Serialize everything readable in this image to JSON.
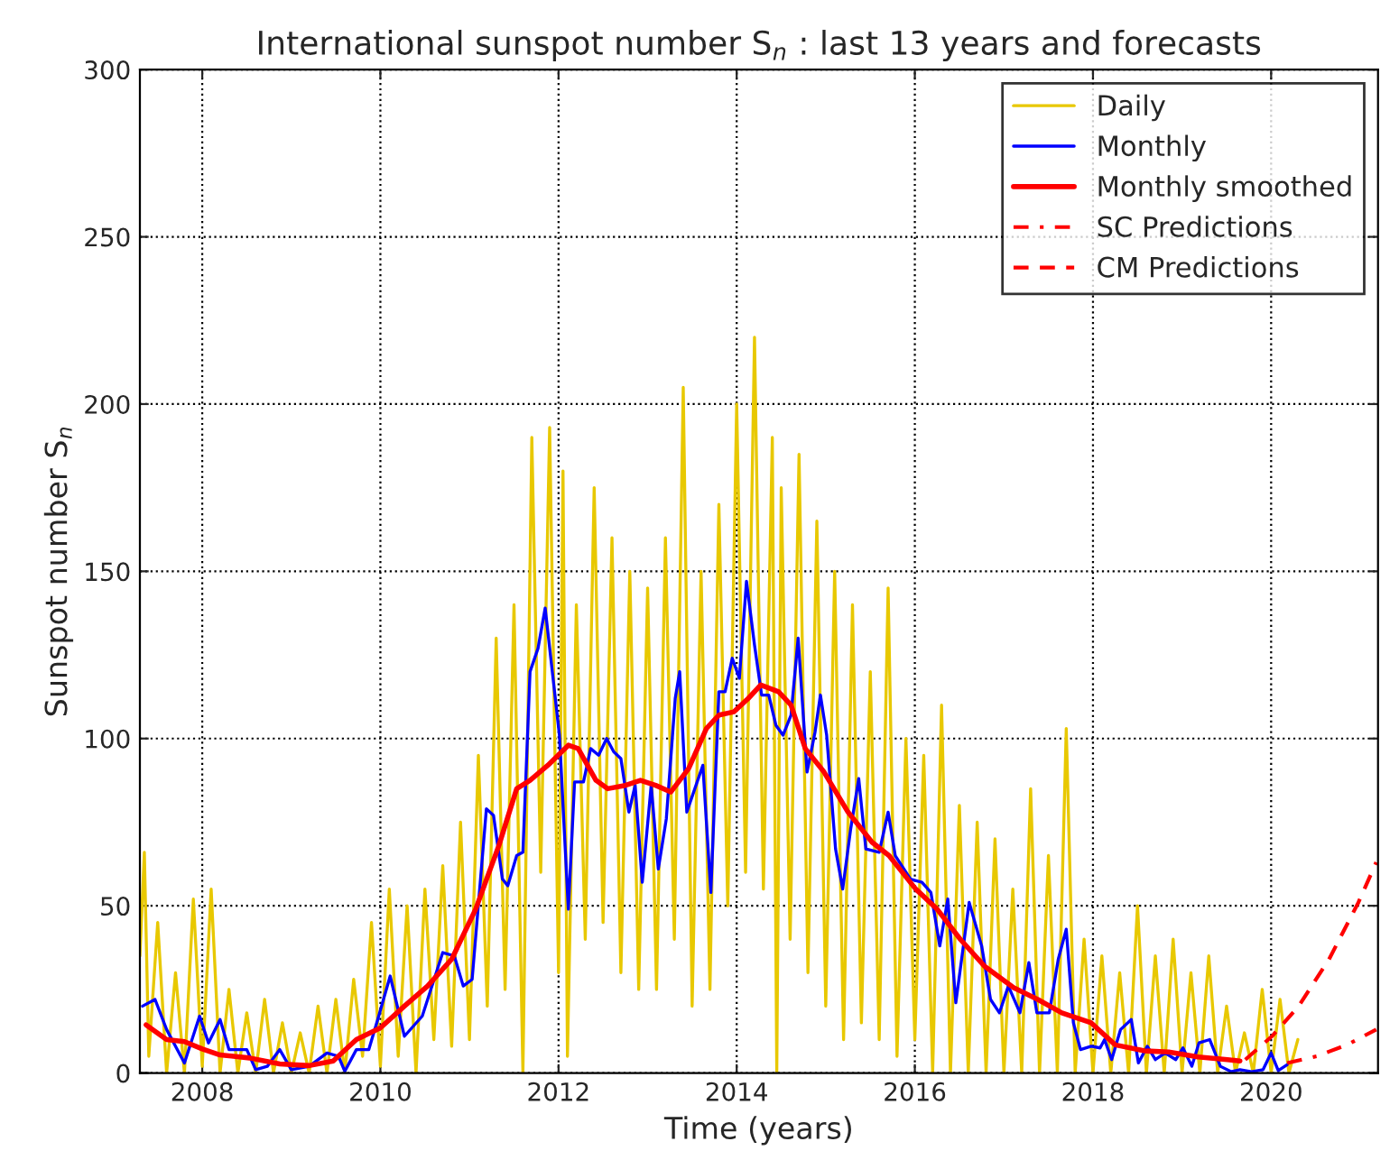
{
  "chart_data": {
    "type": "line",
    "title": "International sunspot number S$_{n}$ : last 13 years and forecasts",
    "xlabel": "Time (years)",
    "ylabel": "Sunspot number S$_{n}$",
    "xlim": [
      2007.3,
      2021.2
    ],
    "xticks": [
      2008,
      2010,
      2012,
      2014,
      2016,
      2018,
      2020
    ],
    "ylim": [
      0,
      300
    ],
    "yticks": [
      0,
      50,
      100,
      150,
      200,
      250,
      300
    ],
    "grid": true,
    "legend": "top right",
    "marker": "none",
    "series": [
      {
        "name": "Daily",
        "color": "#e8c800",
        "line_style": "solid",
        "x": [
          2007.3,
          2007.35,
          2007.4,
          2007.5,
          2007.6,
          2007.7,
          2007.8,
          2007.9,
          2008.0,
          2008.1,
          2008.2,
          2008.3,
          2008.4,
          2008.5,
          2008.6,
          2008.7,
          2008.8,
          2008.9,
          2009.0,
          2009.1,
          2009.2,
          2009.3,
          2009.4,
          2009.5,
          2009.6,
          2009.7,
          2009.8,
          2009.9,
          2010.0,
          2010.1,
          2010.2,
          2010.3,
          2010.4,
          2010.5,
          2010.6,
          2010.7,
          2010.8,
          2010.9,
          2011.0,
          2011.1,
          2011.2,
          2011.3,
          2011.4,
          2011.5,
          2011.6,
          2011.7,
          2011.8,
          2011.9,
          2012.0,
          2012.05,
          2012.1,
          2012.2,
          2012.3,
          2012.4,
          2012.5,
          2012.6,
          2012.7,
          2012.8,
          2012.9,
          2013.0,
          2013.1,
          2013.2,
          2013.3,
          2013.4,
          2013.5,
          2013.6,
          2013.7,
          2013.8,
          2013.9,
          2014.0,
          2014.1,
          2014.2,
          2014.3,
          2014.4,
          2014.45,
          2014.5,
          2014.6,
          2014.7,
          2014.8,
          2014.9,
          2015.0,
          2015.1,
          2015.2,
          2015.3,
          2015.4,
          2015.5,
          2015.6,
          2015.7,
          2015.8,
          2015.9,
          2016.0,
          2016.1,
          2016.2,
          2016.3,
          2016.4,
          2016.5,
          2016.6,
          2016.7,
          2016.8,
          2016.9,
          2017.0,
          2017.1,
          2017.2,
          2017.3,
          2017.4,
          2017.5,
          2017.6,
          2017.7,
          2017.8,
          2017.9,
          2018.0,
          2018.1,
          2018.2,
          2018.3,
          2018.4,
          2018.5,
          2018.6,
          2018.7,
          2018.8,
          2018.9,
          2019.0,
          2019.1,
          2019.2,
          2019.3,
          2019.4,
          2019.5,
          2019.6,
          2019.7,
          2019.8,
          2019.9,
          2020.0,
          2020.1,
          2020.2,
          2020.3
        ],
        "values": [
          35,
          66,
          5,
          45,
          0,
          30,
          0,
          52,
          2,
          55,
          0,
          25,
          0,
          18,
          0,
          22,
          0,
          15,
          0,
          12,
          0,
          20,
          0,
          22,
          0,
          28,
          5,
          45,
          2,
          55,
          5,
          50,
          0,
          55,
          10,
          62,
          8,
          75,
          10,
          95,
          20,
          130,
          25,
          140,
          0,
          190,
          60,
          193,
          30,
          180,
          5,
          140,
          40,
          175,
          45,
          160,
          30,
          150,
          25,
          145,
          25,
          160,
          40,
          205,
          20,
          150,
          25,
          170,
          50,
          200,
          60,
          220,
          55,
          190,
          0,
          175,
          40,
          185,
          30,
          165,
          20,
          150,
          10,
          140,
          15,
          120,
          10,
          145,
          5,
          100,
          10,
          95,
          0,
          110,
          0,
          80,
          0,
          75,
          0,
          70,
          0,
          55,
          0,
          85,
          0,
          65,
          0,
          103,
          0,
          40,
          0,
          35,
          0,
          30,
          0,
          50,
          0,
          35,
          0,
          40,
          0,
          30,
          0,
          35,
          0,
          20,
          0,
          12,
          0,
          25,
          0,
          22,
          0,
          10
        ]
      },
      {
        "name": "Monthly",
        "color": "#0000ff",
        "line_style": "solid",
        "x": [
          2007.33,
          2007.47,
          2007.6,
          2007.8,
          2007.97,
          2008.07,
          2008.2,
          2008.3,
          2008.5,
          2008.6,
          2008.73,
          2008.87,
          2009.0,
          2009.2,
          2009.4,
          2009.53,
          2009.6,
          2009.73,
          2009.87,
          2009.97,
          2010.11,
          2010.27,
          2010.47,
          2010.7,
          2010.83,
          2010.93,
          2011.03,
          2011.19,
          2011.27,
          2011.37,
          2011.43,
          2011.53,
          2011.6,
          2011.68,
          2011.77,
          2011.85,
          2011.93,
          2012.01,
          2012.11,
          2012.18,
          2012.28,
          2012.36,
          2012.45,
          2012.54,
          2012.62,
          2012.7,
          2012.79,
          2012.86,
          2012.94,
          2013.04,
          2013.12,
          2013.21,
          2013.31,
          2013.36,
          2013.44,
          2013.53,
          2013.62,
          2013.71,
          2013.8,
          2013.87,
          2013.95,
          2014.03,
          2014.11,
          2014.2,
          2014.28,
          2014.36,
          2014.44,
          2014.52,
          2014.61,
          2014.69,
          2014.79,
          2014.88,
          2014.94,
          2015.01,
          2015.11,
          2015.19,
          2015.28,
          2015.37,
          2015.45,
          2015.6,
          2015.7,
          2015.78,
          2015.95,
          2016.08,
          2016.18,
          2016.28,
          2016.37,
          2016.46,
          2016.61,
          2016.75,
          2016.85,
          2016.95,
          2017.05,
          2017.18,
          2017.28,
          2017.37,
          2017.51,
          2017.61,
          2017.7,
          2017.78,
          2017.86,
          2017.98,
          2018.08,
          2018.13,
          2018.21,
          2018.31,
          2018.43,
          2018.51,
          2018.61,
          2018.7,
          2018.81,
          2018.93,
          2019.01,
          2019.11,
          2019.19,
          2019.31,
          2019.43,
          2019.55,
          2019.65,
          2019.78,
          2019.91,
          2020.0,
          2020.08,
          2020.18
        ],
        "values": [
          20,
          22,
          13,
          3,
          17,
          9,
          16,
          7,
          7,
          1,
          2,
          7,
          1,
          2,
          6,
          5,
          0.5,
          7,
          7,
          16,
          29,
          11,
          17,
          36,
          35,
          26,
          28,
          79,
          77,
          58,
          56,
          65,
          66,
          120,
          127,
          139,
          120,
          101,
          49,
          87,
          87,
          97,
          95,
          100,
          96,
          94,
          78,
          86,
          57,
          86,
          61,
          76,
          112,
          120,
          78,
          85,
          92,
          54,
          114,
          114,
          124,
          118,
          147,
          128,
          113,
          113,
          104,
          101,
          107,
          130,
          90,
          102,
          113,
          101,
          67,
          55,
          73,
          88,
          67,
          66,
          78,
          65,
          58,
          57,
          54,
          38,
          52,
          21,
          51,
          38,
          22,
          18,
          26,
          18,
          33,
          18,
          18,
          34,
          43,
          15,
          7,
          8,
          7.5,
          10,
          4,
          13,
          16,
          3,
          8,
          4,
          6,
          4,
          7.5,
          2,
          9,
          10,
          2,
          0.4,
          1,
          0.4,
          1,
          6,
          0.7,
          2.5
        ]
      },
      {
        "name": "Monthly smoothed",
        "color": "#ff0000",
        "line_style": "solid",
        "x": [
          2007.37,
          2007.6,
          2007.8,
          2008.0,
          2008.2,
          2008.53,
          2008.87,
          2009.2,
          2009.47,
          2009.73,
          2010.0,
          2010.27,
          2010.53,
          2010.8,
          2011.07,
          2011.33,
          2011.53,
          2011.68,
          2011.88,
          2012.11,
          2012.22,
          2012.42,
          2012.55,
          2012.75,
          2012.92,
          2013.09,
          2013.26,
          2013.46,
          2013.66,
          2013.8,
          2013.97,
          2014.13,
          2014.27,
          2014.47,
          2014.61,
          2014.77,
          2014.98,
          2015.25,
          2015.52,
          2015.71,
          2016.01,
          2016.25,
          2016.51,
          2016.78,
          2017.11,
          2017.38,
          2017.65,
          2017.98,
          2018.25,
          2018.58,
          2018.85,
          2019.18,
          2019.51,
          2019.65
        ],
        "values": [
          14.4,
          10,
          9.4,
          7.2,
          5.4,
          4.5,
          2.7,
          2.2,
          3.6,
          10,
          13.5,
          20,
          26,
          34,
          49,
          68,
          85,
          87.5,
          92,
          98,
          97,
          87.5,
          85,
          86,
          87.5,
          86,
          84,
          91,
          103,
          107,
          108,
          112,
          116,
          114,
          110,
          97,
          90,
          78,
          69,
          65,
          55,
          49,
          40,
          32,
          25.5,
          22,
          18,
          15,
          8.4,
          6.6,
          6.3,
          4.8,
          4,
          3.6
        ]
      },
      {
        "name": "SC Predictions",
        "color": "#ff0000",
        "line_style": "dashdot",
        "x": [
          2020.18,
          2020.51,
          2020.85,
          2021.18
        ],
        "values": [
          3,
          5,
          8.4,
          13
        ]
      },
      {
        "name": "CM Predictions",
        "color": "#ff0000",
        "line_style": "dashed",
        "x": [
          2019.71,
          2020.01,
          2020.31,
          2020.65,
          2020.98,
          2021.18
        ],
        "values": [
          4,
          11,
          20,
          34,
          51,
          63
        ]
      }
    ]
  }
}
